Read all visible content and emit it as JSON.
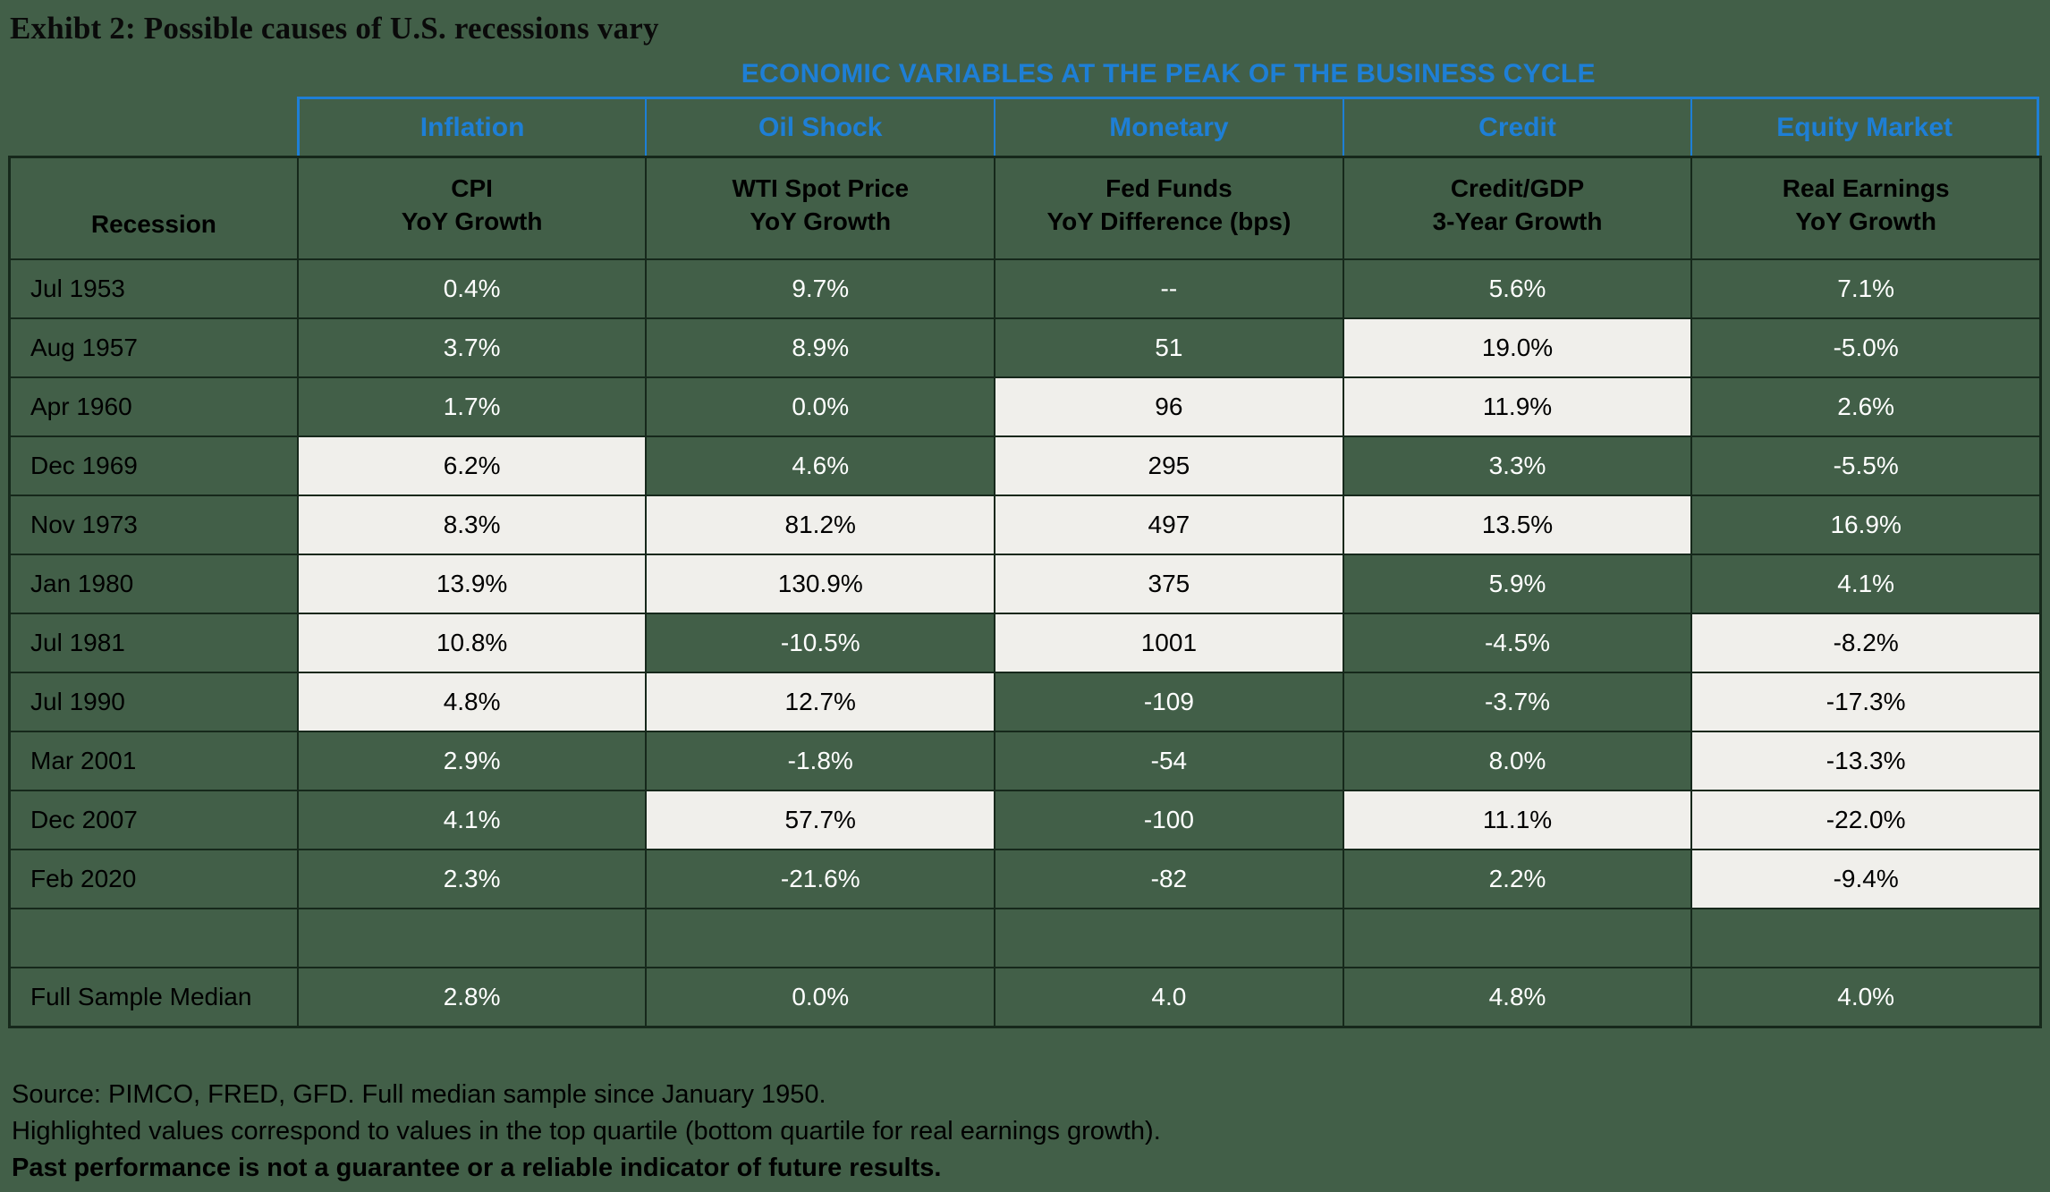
{
  "title": "Exhibt 2: Possible causes of U.S. recessions vary",
  "chart_data": {
    "type": "table",
    "super_header": "ECONOMIC VARIABLES AT THE PEAK OF THE BUSINESS CYCLE",
    "categories": [
      "Inflation",
      "Oil Shock",
      "Monetary",
      "Credit",
      "Equity Market"
    ],
    "recession_header": "Recession",
    "column_headers": [
      [
        "CPI",
        "YoY Growth"
      ],
      [
        "WTI Spot Price",
        "YoY Growth"
      ],
      [
        "Fed Funds",
        "YoY Difference (bps)"
      ],
      [
        "Credit/GDP",
        "3-Year Growth"
      ],
      [
        "Real Earnings",
        "YoY Growth"
      ]
    ],
    "rows": [
      {
        "label": "Jul 1953",
        "values": [
          "0.4%",
          "9.7%",
          "--",
          "5.6%",
          "7.1%"
        ],
        "highlighted": [
          false,
          false,
          false,
          false,
          false
        ]
      },
      {
        "label": "Aug 1957",
        "values": [
          "3.7%",
          "8.9%",
          "51",
          "19.0%",
          "-5.0%"
        ],
        "highlighted": [
          false,
          false,
          false,
          true,
          false
        ]
      },
      {
        "label": "Apr 1960",
        "values": [
          "1.7%",
          "0.0%",
          "96",
          "11.9%",
          "2.6%"
        ],
        "highlighted": [
          false,
          false,
          true,
          true,
          false
        ]
      },
      {
        "label": "Dec 1969",
        "values": [
          "6.2%",
          "4.6%",
          "295",
          "3.3%",
          "-5.5%"
        ],
        "highlighted": [
          true,
          false,
          true,
          false,
          false
        ]
      },
      {
        "label": "Nov 1973",
        "values": [
          "8.3%",
          "81.2%",
          "497",
          "13.5%",
          "16.9%"
        ],
        "highlighted": [
          true,
          true,
          true,
          true,
          false
        ]
      },
      {
        "label": "Jan 1980",
        "values": [
          "13.9%",
          "130.9%",
          "375",
          "5.9%",
          "4.1%"
        ],
        "highlighted": [
          true,
          true,
          true,
          false,
          false
        ]
      },
      {
        "label": "Jul 1981",
        "values": [
          "10.8%",
          "-10.5%",
          "1001",
          "-4.5%",
          "-8.2%"
        ],
        "highlighted": [
          true,
          false,
          true,
          false,
          true
        ]
      },
      {
        "label": "Jul 1990",
        "values": [
          "4.8%",
          "12.7%",
          "-109",
          "-3.7%",
          "-17.3%"
        ],
        "highlighted": [
          true,
          true,
          false,
          false,
          true
        ]
      },
      {
        "label": "Mar 2001",
        "values": [
          "2.9%",
          "-1.8%",
          "-54",
          "8.0%",
          "-13.3%"
        ],
        "highlighted": [
          false,
          false,
          false,
          false,
          true
        ]
      },
      {
        "label": "Dec 2007",
        "values": [
          "4.1%",
          "57.7%",
          "-100",
          "11.1%",
          "-22.0%"
        ],
        "highlighted": [
          false,
          true,
          false,
          true,
          true
        ]
      },
      {
        "label": "Feb 2020",
        "values": [
          "2.3%",
          "-21.6%",
          "-82",
          "2.2%",
          "-9.4%"
        ],
        "highlighted": [
          false,
          false,
          false,
          false,
          true
        ]
      },
      {
        "blank": true,
        "label": "",
        "values": []
      },
      {
        "label": "Full Sample Median",
        "values": [
          "2.8%",
          "0.0%",
          "4.0",
          "4.8%",
          "4.0%"
        ],
        "highlighted": [
          false,
          false,
          false,
          false,
          false
        ]
      }
    ]
  },
  "footnotes": [
    "Source: PIMCO, FRED, GFD. Full median sample since January 1950.",
    "Highlighted values correspond to values in the top quartile (bottom quartile for real earnings growth).",
    "Past performance is not a guarantee or a reliable indicator of future results."
  ],
  "colors": {
    "cell_green": "#425F48",
    "highlight": "#F0EFEB",
    "accent_blue": "#1E7FD6",
    "border": "#16281B"
  }
}
